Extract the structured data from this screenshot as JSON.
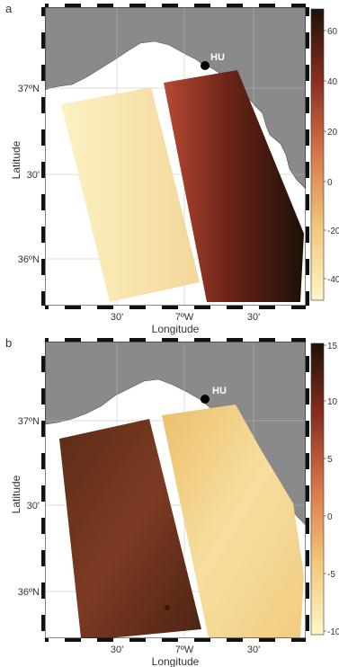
{
  "figure": {
    "panels": [
      {
        "letter": "a",
        "station": "HU",
        "lat_labels": [
          "37ºN",
          "30'",
          "36ºN"
        ],
        "lon_labels": [
          "30'",
          "7ºW",
          "30'"
        ],
        "xlabel": "Longitude",
        "ylabel": "Latitude",
        "colorbar_ticks": [
          "60",
          "40",
          "20",
          "0",
          "-20",
          "-40"
        ],
        "colorbar_range": [
          -50,
          65
        ],
        "colors": {
          "land": "#8a8a8a",
          "low": "#fdf6c8",
          "mid": "#c8522d",
          "high": "#1e1208"
        }
      },
      {
        "letter": "b",
        "station": "HU",
        "lat_labels": [
          "37ºN",
          "30'",
          "36ºN"
        ],
        "lon_labels": [
          "30'",
          "7ºW",
          "30'"
        ],
        "xlabel": "Longitude",
        "ylabel": "Latitude",
        "colorbar_ticks": [
          "15",
          "10",
          "5",
          "0",
          "-5",
          "-10"
        ],
        "colorbar_range": [
          -10,
          15
        ],
        "colors": {
          "land": "#8a8a8a",
          "low": "#fdf6c8",
          "mid": "#c8522d",
          "high": "#1e1208"
        }
      }
    ]
  }
}
